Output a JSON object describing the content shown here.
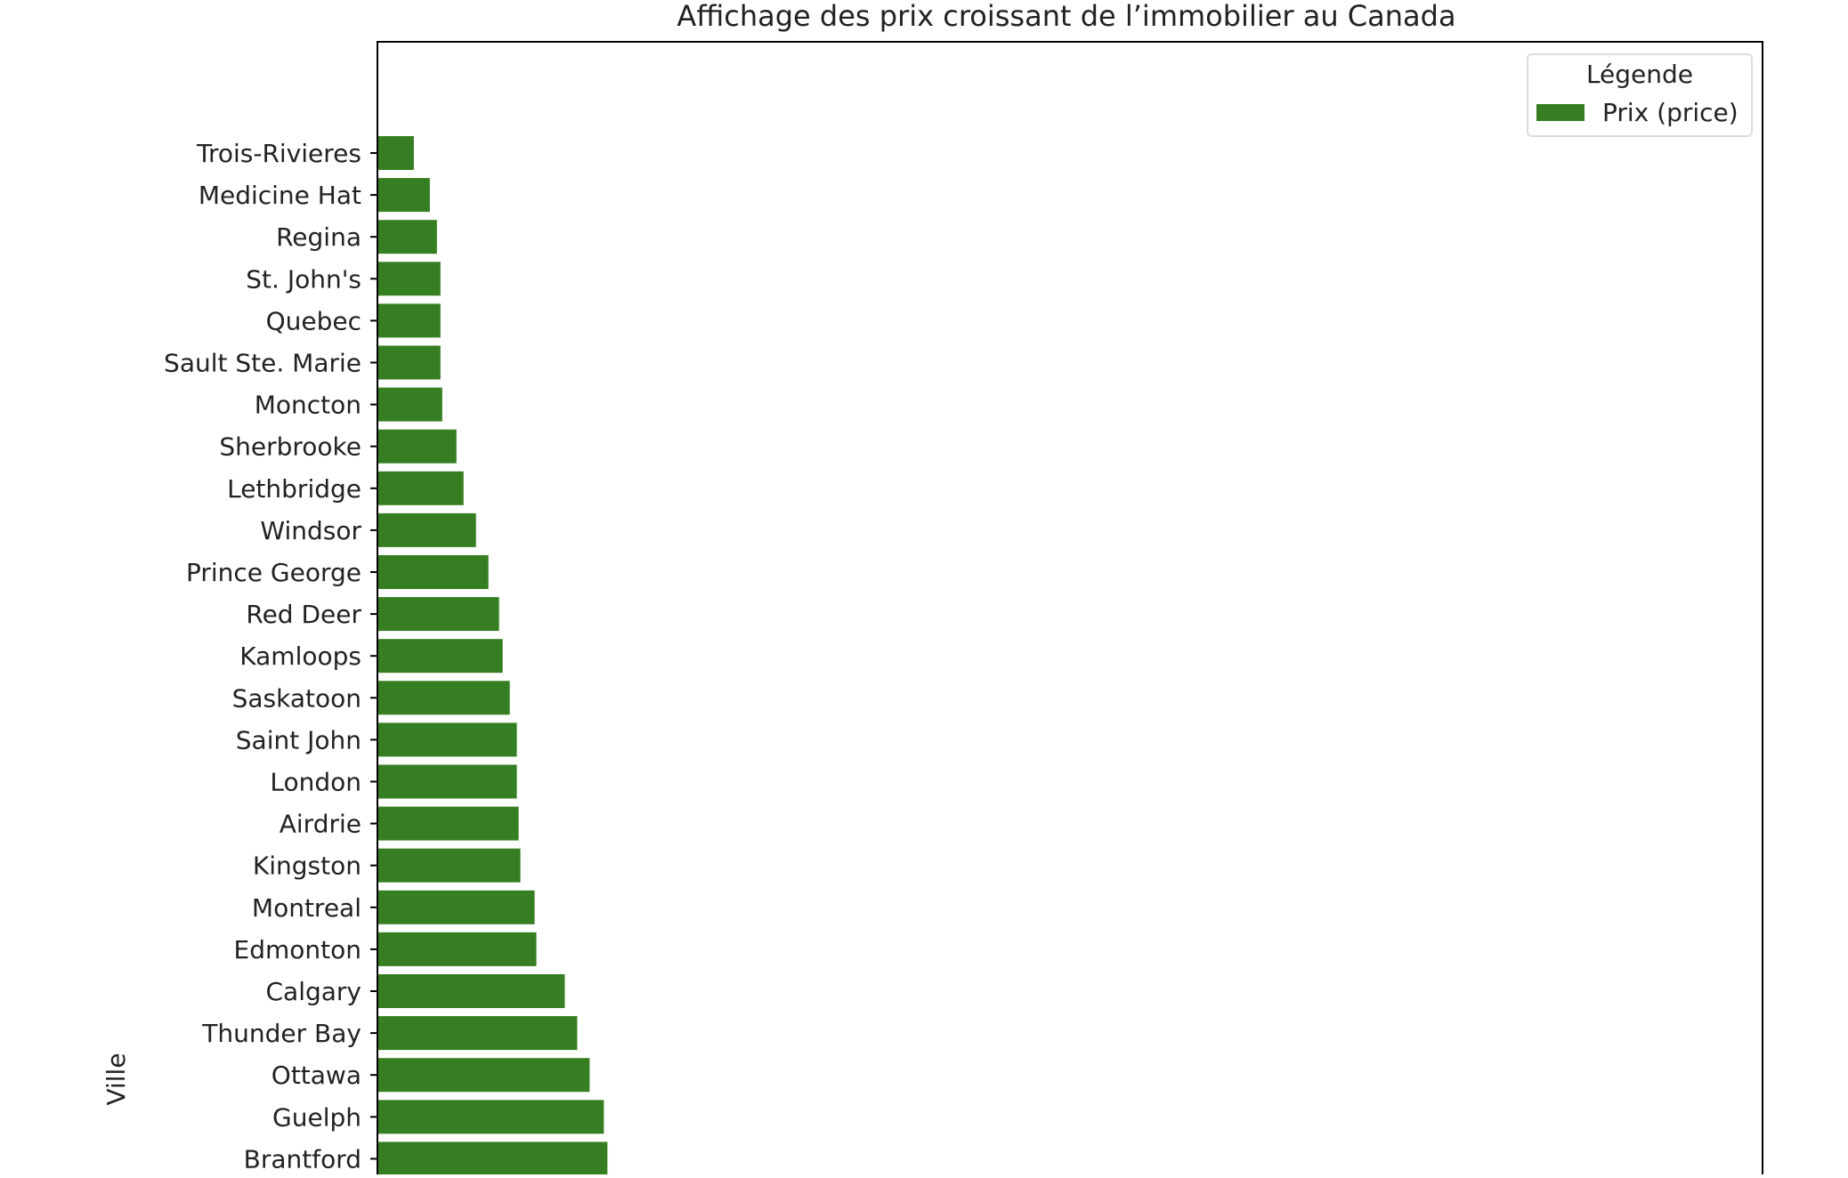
{
  "chart_data": {
    "type": "bar",
    "orientation": "horizontal",
    "title": "Affichage des prix croissant de l’immobilier au Canada",
    "xlabel": "",
    "ylabel": "Ville",
    "xlim": [
      0,
      780000
    ],
    "grid": false,
    "legend": {
      "title": "Légende",
      "position": "top-right",
      "entries": [
        "Prix (price)"
      ]
    },
    "colors": {
      "bar": "#367e22"
    },
    "categories": [
      "Trois-Rivieres",
      "Medicine Hat",
      "Regina",
      "St. John's",
      "Quebec",
      "Sault Ste. Marie",
      "Moncton",
      "Sherbrooke",
      "Lethbridge",
      "Windsor",
      "Prince George",
      "Red Deer",
      "Kamloops",
      "Saskatoon",
      "Saint John",
      "London",
      "Airdrie",
      "Kingston",
      "Montreal",
      "Edmonton",
      "Calgary",
      "Thunder Bay",
      "Ottawa",
      "Guelph",
      "Brantford"
    ],
    "series": [
      {
        "name": "Prix (price)",
        "values": [
          20000,
          29000,
          33000,
          35000,
          35000,
          35000,
          36000,
          44000,
          48000,
          55000,
          62000,
          68000,
          70000,
          74000,
          78000,
          78000,
          79000,
          80000,
          88000,
          89000,
          105000,
          112000,
          119000,
          127000,
          129000
        ]
      }
    ]
  }
}
